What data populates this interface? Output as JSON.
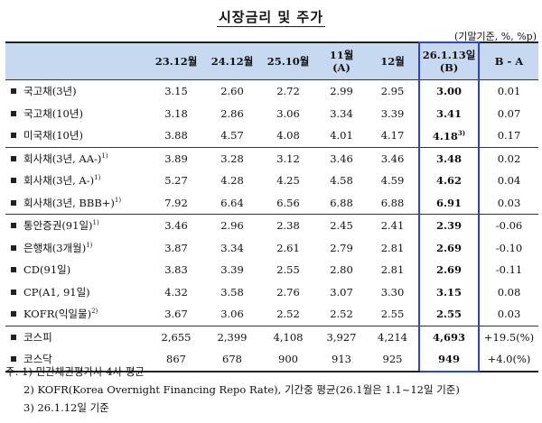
{
  "title": "시장금리 및 주가",
  "unit_note": "(기말기준, %, %p)",
  "columns": [
    "",
    "23.12월",
    "24.12월",
    "25.10월",
    "11월\n(A)",
    "12월",
    "26.1.13일\n(B)",
    "B - A"
  ],
  "col1": "23.12월",
  "col2": "24.12월",
  "col3": "25.10월",
  "col4a": "11월",
  "col4b": "(A)",
  "col5": "12월",
  "col6a": "26.1.13일",
  "col6b": "(B)",
  "col7": "B - A",
  "rows": [
    {
      "label": "국고채(3년)",
      "sup": "",
      "v": [
        "3.15",
        "2.60",
        "2.72",
        "2.99",
        "2.95",
        "3.00",
        "0.01"
      ],
      "bsup": ""
    },
    {
      "label": "국고채(10년)",
      "sup": "",
      "v": [
        "3.18",
        "2.86",
        "3.06",
        "3.34",
        "3.39",
        "3.41",
        "0.07"
      ],
      "bsup": ""
    },
    {
      "label": "미국채(10년)",
      "sup": "",
      "v": [
        "3.88",
        "4.57",
        "4.08",
        "4.01",
        "4.17",
        "4.18",
        "0.17"
      ],
      "bsup": "3)"
    },
    {
      "label": "회사채(3년, AA-)",
      "sup": "1)",
      "v": [
        "3.89",
        "3.28",
        "3.12",
        "3.46",
        "3.46",
        "3.48",
        "0.02"
      ],
      "bsup": ""
    },
    {
      "label": "회사채(3년, A-)",
      "sup": "1)",
      "v": [
        "5.27",
        "4.28",
        "4.25",
        "4.58",
        "4.59",
        "4.62",
        "0.04"
      ],
      "bsup": ""
    },
    {
      "label": "회사채(3년, BBB+)",
      "sup": "1)",
      "v": [
        "7.92",
        "6.64",
        "6.56",
        "6.88",
        "6.88",
        "6.91",
        "0.03"
      ],
      "bsup": ""
    },
    {
      "label": "통안증권(91일)",
      "sup": "1)",
      "v": [
        "3.46",
        "2.96",
        "2.38",
        "2.45",
        "2.41",
        "2.39",
        "-0.06"
      ],
      "bsup": ""
    },
    {
      "label": "은행채(3개월)",
      "sup": "1)",
      "v": [
        "3.87",
        "3.34",
        "2.61",
        "2.79",
        "2.81",
        "2.69",
        "-0.10"
      ],
      "bsup": ""
    },
    {
      "label": "CD(91일)",
      "sup": "",
      "v": [
        "3.83",
        "3.39",
        "2.55",
        "2.80",
        "2.81",
        "2.69",
        "-0.11"
      ],
      "bsup": ""
    },
    {
      "label": "CP(A1, 91일)",
      "sup": "",
      "v": [
        "4.32",
        "3.58",
        "2.76",
        "3.07",
        "3.30",
        "3.15",
        "0.08"
      ],
      "bsup": ""
    },
    {
      "label": "KOFR(익일물)",
      "sup": "2)",
      "v": [
        "3.67",
        "3.06",
        "2.52",
        "2.52",
        "2.55",
        "2.55",
        "0.03"
      ],
      "bsup": ""
    },
    {
      "label": "코스피",
      "sup": "",
      "v": [
        "2,655",
        "2,399",
        "4,108",
        "3,927",
        "4,214",
        "4,693",
        "+19.5(%)"
      ],
      "bsup": ""
    },
    {
      "label": "코스닥",
      "sup": "",
      "v": [
        "867",
        "678",
        "900",
        "913",
        "925",
        "949",
        "+4.0(%)"
      ],
      "bsup": ""
    }
  ],
  "notes": {
    "n1": "주: 1) 민간채권평가사 4사 평균",
    "n2": "2) KOFR(Korea Overnight Financing Repo Rate), 기간중 평균(26.1월은 1.1~12일 기준)",
    "n3": "3) 26.1.12일 기준"
  }
}
